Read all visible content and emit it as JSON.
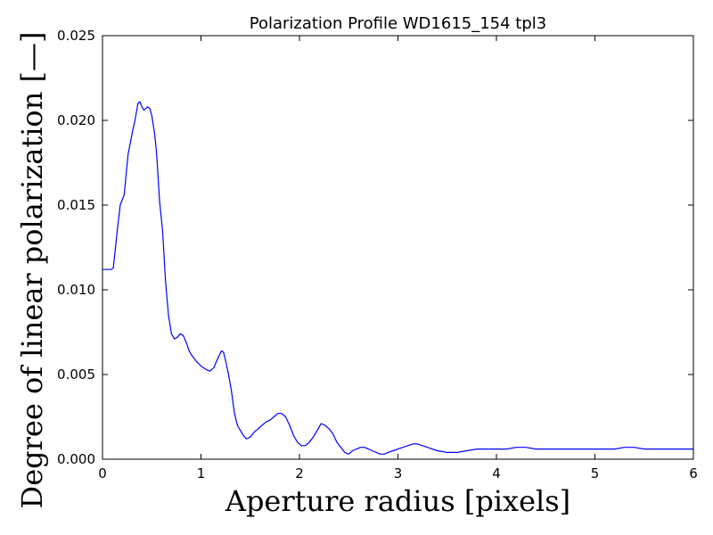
{
  "chart_data": {
    "type": "line",
    "title": "Polarization Profile WD1615_154 tpl3",
    "xlabel": "Aperture radius [pixels]",
    "ylabel": "Degree of linear polarization [—]",
    "xlim": [
      0,
      6
    ],
    "ylim": [
      0,
      0.025
    ],
    "x_ticks": [
      0,
      1,
      2,
      3,
      4,
      5,
      6
    ],
    "x_tick_labels": [
      "0",
      "1",
      "2",
      "3",
      "4",
      "5",
      "6"
    ],
    "y_ticks": [
      0,
      0.005,
      0.01,
      0.015,
      0.02,
      0.025
    ],
    "y_tick_labels": [
      "0.000",
      "0.005",
      "0.010",
      "0.015",
      "0.020",
      "0.025"
    ],
    "grid": false,
    "legend": "none",
    "colors": {
      "line": "#0000ff",
      "axes": "#000000",
      "background": "#ffffff"
    },
    "series": [
      {
        "x": [
          0.0,
          0.09,
          0.11,
          0.15,
          0.18,
          0.22,
          0.26,
          0.28,
          0.31,
          0.33,
          0.36,
          0.38,
          0.4,
          0.42,
          0.44,
          0.46,
          0.48,
          0.5,
          0.53,
          0.55,
          0.58,
          0.61,
          0.64,
          0.67,
          0.7,
          0.73,
          0.76,
          0.79,
          0.82,
          0.85,
          0.88,
          0.91,
          0.95,
          1.0,
          1.05,
          1.09,
          1.13,
          1.16,
          1.19,
          1.21,
          1.23,
          1.25,
          1.28,
          1.31,
          1.34,
          1.37,
          1.4,
          1.43,
          1.46,
          1.5,
          1.54,
          1.58,
          1.62,
          1.66,
          1.7,
          1.74,
          1.78,
          1.82,
          1.86,
          1.9,
          1.94,
          1.98,
          2.02,
          2.06,
          2.1,
          2.14,
          2.18,
          2.22,
          2.26,
          2.3,
          2.34,
          2.38,
          2.42,
          2.46,
          2.5,
          2.54,
          2.58,
          2.62,
          2.66,
          2.7,
          2.74,
          2.78,
          2.82,
          2.86,
          2.9,
          2.95,
          3.0,
          3.05,
          3.1,
          3.15,
          3.2,
          3.25,
          3.3,
          3.4,
          3.5,
          3.6,
          3.7,
          3.8,
          3.9,
          4.0,
          4.1,
          4.2,
          4.3,
          4.4,
          4.5,
          4.6,
          4.7,
          4.8,
          4.9,
          5.0,
          5.1,
          5.2,
          5.3,
          5.4,
          5.5,
          5.6,
          5.7,
          5.8,
          5.9,
          6.0
        ],
        "y": [
          0.0112,
          0.0112,
          0.0113,
          0.0135,
          0.015,
          0.0156,
          0.018,
          0.0186,
          0.0195,
          0.02,
          0.021,
          0.0211,
          0.0208,
          0.0206,
          0.0207,
          0.0208,
          0.0207,
          0.0203,
          0.0192,
          0.018,
          0.0152,
          0.0135,
          0.0105,
          0.0085,
          0.0074,
          0.0071,
          0.0072,
          0.0074,
          0.0073,
          0.0069,
          0.0064,
          0.0061,
          0.0058,
          0.0055,
          0.0053,
          0.0052,
          0.0054,
          0.0058,
          0.0062,
          0.0064,
          0.0063,
          0.0058,
          0.005,
          0.004,
          0.0027,
          0.002,
          0.0017,
          0.0014,
          0.0012,
          0.0013,
          0.0016,
          0.0018,
          0.002,
          0.0022,
          0.0023,
          0.0025,
          0.0027,
          0.0027,
          0.0025,
          0.002,
          0.0014,
          0.001,
          0.0008,
          0.0008,
          0.001,
          0.0013,
          0.0017,
          0.0021,
          0.002,
          0.0018,
          0.0015,
          0.001,
          0.0007,
          0.0004,
          0.0003,
          0.0005,
          0.0006,
          0.0007,
          0.0007,
          0.0006,
          0.0005,
          0.0004,
          0.0003,
          0.0003,
          0.0004,
          0.0005,
          0.0006,
          0.0007,
          0.0008,
          0.0009,
          0.0009,
          0.0008,
          0.0007,
          0.0005,
          0.0004,
          0.0004,
          0.0005,
          0.0006,
          0.0006,
          0.0006,
          0.0006,
          0.0007,
          0.0007,
          0.0006,
          0.0006,
          0.0006,
          0.0006,
          0.0006,
          0.0006,
          0.0006,
          0.0006,
          0.0006,
          0.0007,
          0.0007,
          0.0006,
          0.0006,
          0.0006,
          0.0006,
          0.0006,
          0.0006
        ]
      }
    ]
  }
}
